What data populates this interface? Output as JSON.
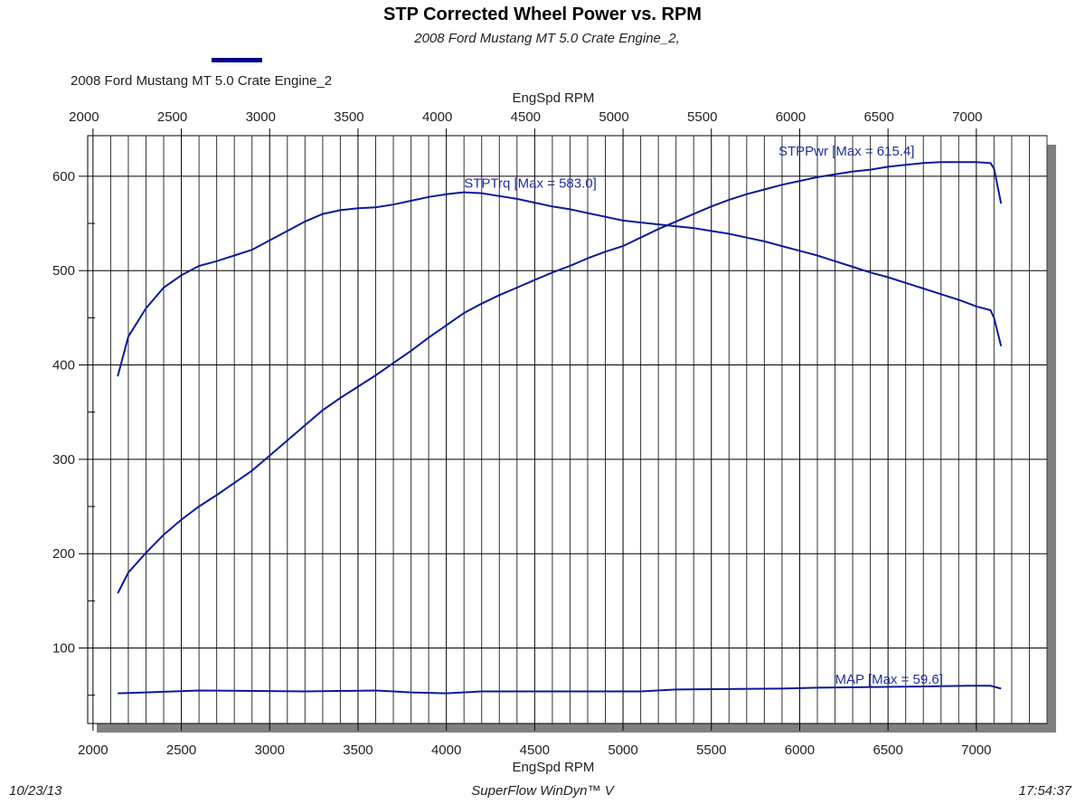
{
  "chart_data": {
    "type": "line",
    "title": "STP Corrected Wheel Power vs. RPM",
    "subtitle": "2008 Ford Mustang MT 5.0 Crate Engine_2,",
    "legend": {
      "entries": [
        "2008 Ford Mustang MT 5.0 Crate Engine_2"
      ],
      "placement": "top-left",
      "color": "#00008b"
    },
    "xlabel": "EngSpd  RPM",
    "xlim": [
      1970,
      7400
    ],
    "ylim": [
      20,
      643
    ],
    "xticks": [
      2000,
      2500,
      3000,
      3500,
      4000,
      4500,
      5000,
      5500,
      6000,
      6500,
      7000
    ],
    "yticks": [
      100,
      200,
      300,
      400,
      500,
      600
    ],
    "grid": true,
    "line_color": "#0a1a9a",
    "series": [
      {
        "name": "STPTrq",
        "annotation": "STPTrq [Max = 583.0]",
        "x": [
          2140,
          2200,
          2300,
          2400,
          2500,
          2600,
          2700,
          2800,
          2900,
          3000,
          3100,
          3200,
          3300,
          3400,
          3500,
          3600,
          3700,
          3800,
          3900,
          4000,
          4100,
          4200,
          4300,
          4400,
          4500,
          4600,
          4700,
          4800,
          4900,
          5000,
          5100,
          5200,
          5300,
          5400,
          5500,
          5600,
          5700,
          5800,
          5900,
          6000,
          6100,
          6200,
          6300,
          6400,
          6500,
          6600,
          6700,
          6800,
          6900,
          7000,
          7080,
          7100,
          7140
        ],
        "y": [
          388,
          430,
          460,
          482,
          495,
          505,
          510,
          516,
          522,
          532,
          542,
          552,
          560,
          564,
          566,
          567,
          570,
          574,
          578,
          581,
          583,
          582,
          579,
          576,
          572,
          568,
          565,
          561,
          557,
          553,
          551,
          549,
          547,
          545,
          542,
          539,
          535,
          531,
          526,
          521,
          516,
          510,
          504,
          498,
          493,
          487,
          481,
          475,
          469,
          462,
          458,
          450,
          420
        ]
      },
      {
        "name": "STPPwr",
        "annotation": "STPPwr [Max = 615.4]",
        "x": [
          2140,
          2200,
          2300,
          2400,
          2500,
          2600,
          2700,
          2800,
          2900,
          3000,
          3100,
          3200,
          3300,
          3400,
          3500,
          3600,
          3700,
          3800,
          3900,
          4000,
          4100,
          4200,
          4300,
          4400,
          4500,
          4600,
          4700,
          4800,
          4900,
          5000,
          5100,
          5200,
          5300,
          5400,
          5500,
          5600,
          5700,
          5800,
          5900,
          6000,
          6100,
          6200,
          6300,
          6400,
          6500,
          6600,
          6700,
          6800,
          6900,
          7000,
          7080,
          7100,
          7140
        ],
        "y": [
          158,
          180,
          201,
          220,
          236,
          250,
          262,
          275,
          288,
          304,
          320,
          336,
          352,
          365,
          377,
          389,
          402,
          415,
          429,
          442,
          455,
          465,
          474,
          482,
          490,
          498,
          505,
          513,
          520,
          526,
          535,
          544,
          552,
          560,
          568,
          575,
          581,
          586,
          591,
          595,
          599,
          602,
          605,
          607,
          610,
          612,
          614,
          615,
          615,
          615,
          614,
          608,
          571
        ]
      },
      {
        "name": "MAP",
        "annotation": "MAP   [Max = 59.6]",
        "x": [
          2140,
          2300,
          2600,
          3200,
          3600,
          3700,
          3800,
          4000,
          4200,
          5100,
          5300,
          5900,
          6100,
          6600,
          6950,
          7080,
          7140
        ],
        "y": [
          52,
          53,
          55,
          54,
          55,
          54,
          53,
          52,
          54,
          54,
          56,
          57,
          58,
          59,
          60,
          60,
          57
        ]
      }
    ]
  },
  "footer": {
    "date": "10/23/13",
    "software": "SuperFlow WinDyn™ V",
    "time": "17:54:37"
  }
}
